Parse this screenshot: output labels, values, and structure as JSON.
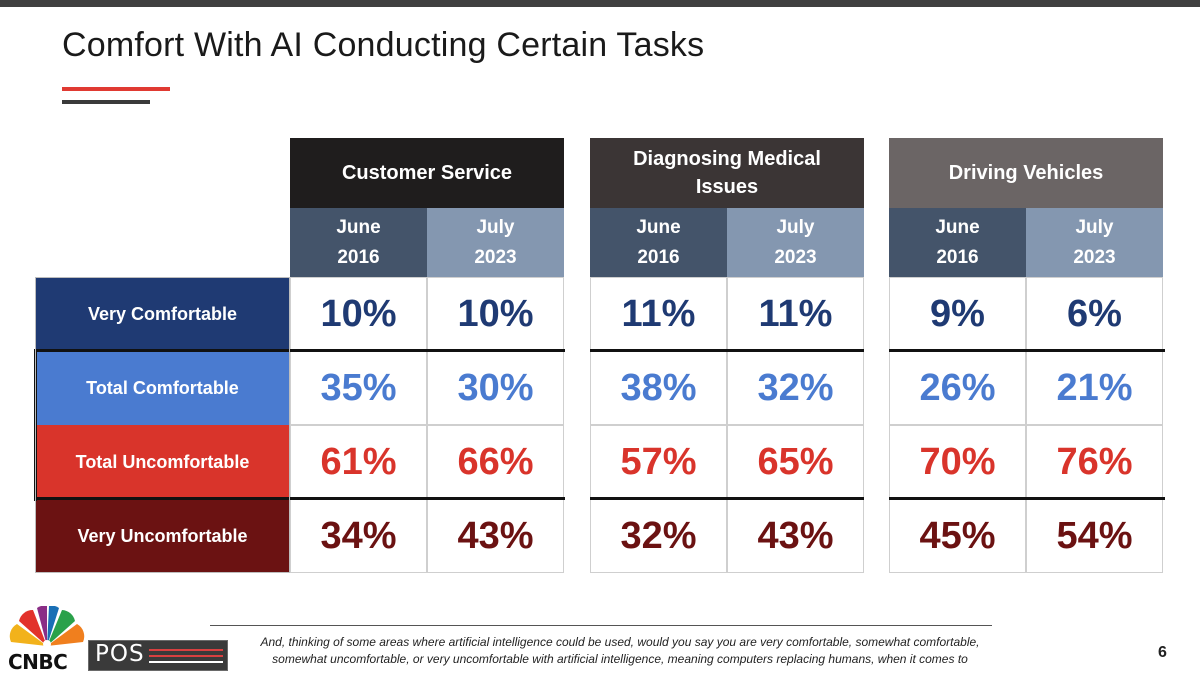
{
  "page": {
    "title": "Comfort With AI Conducting Certain Tasks",
    "page_number": "6"
  },
  "footnote": {
    "line1": "And, thinking of some areas where artificial intelligence could be used, would you say you are very comfortable, somewhat comfortable,",
    "line2": "somewhat uncomfortable, or very uncomfortable with artificial intelligence, meaning computers replacing humans, when it comes to"
  },
  "logos": {
    "cnbc": "CNBC",
    "pos": "POS"
  },
  "colors": {
    "group_headers": [
      "#1f1d1d",
      "#3b3535",
      "#6b6565"
    ],
    "june_header": "#44546a",
    "july_header": "#8497b0",
    "very_comfortable": "#1f3a73",
    "total_comfortable": "#4a7bd0",
    "total_uncomfortable": "#d9342b",
    "very_uncomfortable": "#6b1212"
  },
  "chart_data": {
    "type": "table",
    "title": "Comfort With AI Conducting Certain Tasks",
    "groups": [
      {
        "name": "Customer Service",
        "periods": [
          {
            "line1": "June",
            "line2": "2016"
          },
          {
            "line1": "July",
            "line2": "2023"
          }
        ]
      },
      {
        "name": "Diagnosing Medical Issues",
        "periods": [
          {
            "line1": "June",
            "line2": "2016"
          },
          {
            "line1": "July",
            "line2": "2023"
          }
        ]
      },
      {
        "name": "Driving Vehicles",
        "periods": [
          {
            "line1": "June",
            "line2": "2016"
          },
          {
            "line1": "July",
            "line2": "2023"
          }
        ]
      }
    ],
    "rows": [
      {
        "label": "Very Comfortable",
        "values": [
          "10%",
          "10%",
          "11%",
          "11%",
          "9%",
          "6%"
        ]
      },
      {
        "label": "Total Comfortable",
        "values": [
          "35%",
          "30%",
          "38%",
          "32%",
          "26%",
          "21%"
        ]
      },
      {
        "label": "Total Uncomfortable",
        "values": [
          "61%",
          "66%",
          "57%",
          "65%",
          "70%",
          "76%"
        ]
      },
      {
        "label": "Very Uncomfortable",
        "values": [
          "34%",
          "43%",
          "32%",
          "43%",
          "45%",
          "54%"
        ]
      }
    ]
  }
}
